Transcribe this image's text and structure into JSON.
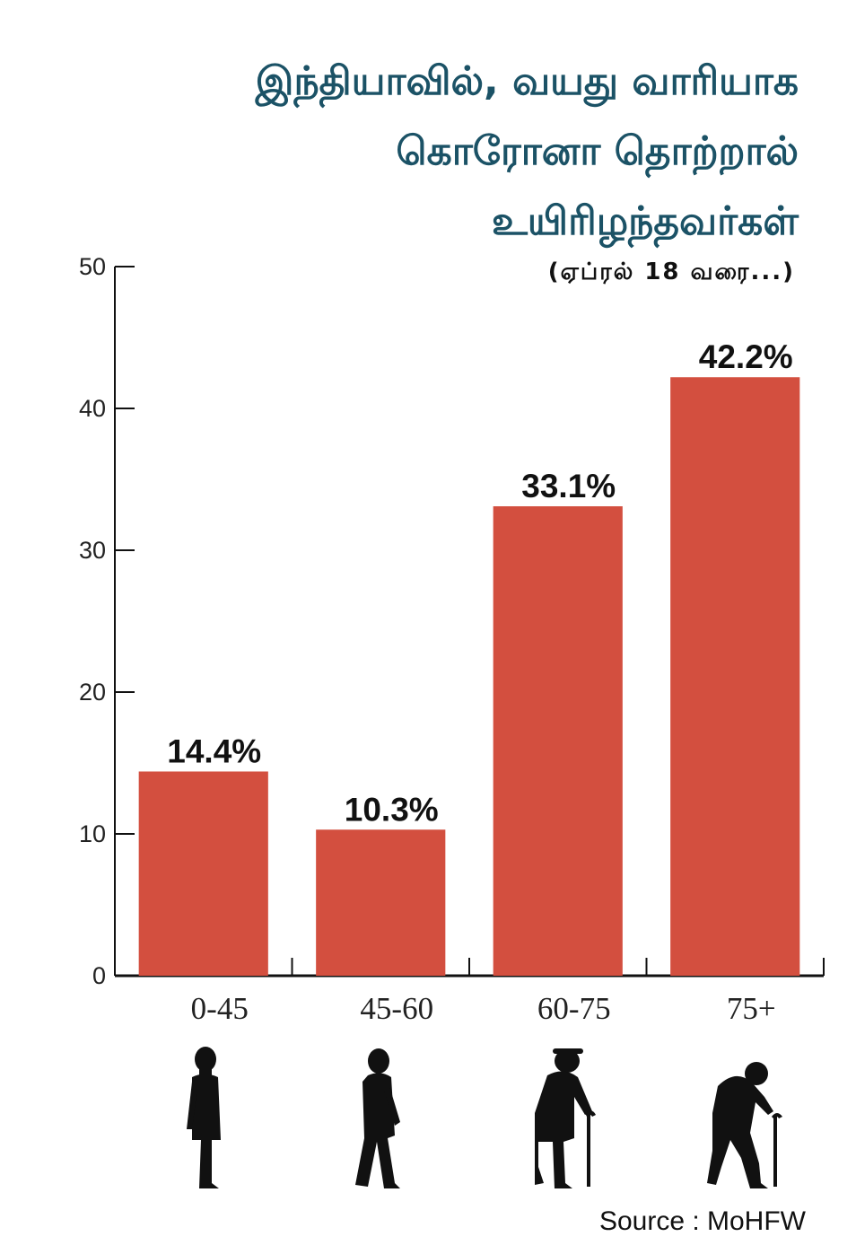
{
  "header": {
    "title_lines": [
      "இந்தியாவில், வயது வாரியாக",
      "கொரோனா தொற்றால்",
      "உயிரிழந்தவர்கள்"
    ],
    "subtitle": "(ஏப்ரல் 18 வரை...)"
  },
  "chart_data": {
    "type": "bar",
    "title": "இந்தியாவில், வயது வாரியாக கொரோனா தொற்றால் உயிரிழந்தவர்கள்",
    "subtitle": "(ஏப்ரல் 18 வரை...)",
    "categories": [
      "0-45",
      "45-60",
      "60-75",
      "75+"
    ],
    "values": [
      14.4,
      10.3,
      33.1,
      42.2
    ],
    "data_labels": [
      "14.4%",
      "10.3%",
      "33.1%",
      "42.2%"
    ],
    "ylim": [
      0,
      50
    ],
    "yticks": [
      0,
      10,
      20,
      30,
      40,
      50
    ],
    "xlabel": "",
    "ylabel": "",
    "grid": false,
    "bar_color": "#d34f3f"
  },
  "icons": [
    "standing-man-icon",
    "walking-man-icon",
    "elderly-man-with-cane-icon",
    "stooped-elderly-man-with-cane-icon"
  ],
  "footer": {
    "source": "Source : MoHFW"
  },
  "colors": {
    "title": "#1b5266",
    "bar": "#d34f3f"
  }
}
